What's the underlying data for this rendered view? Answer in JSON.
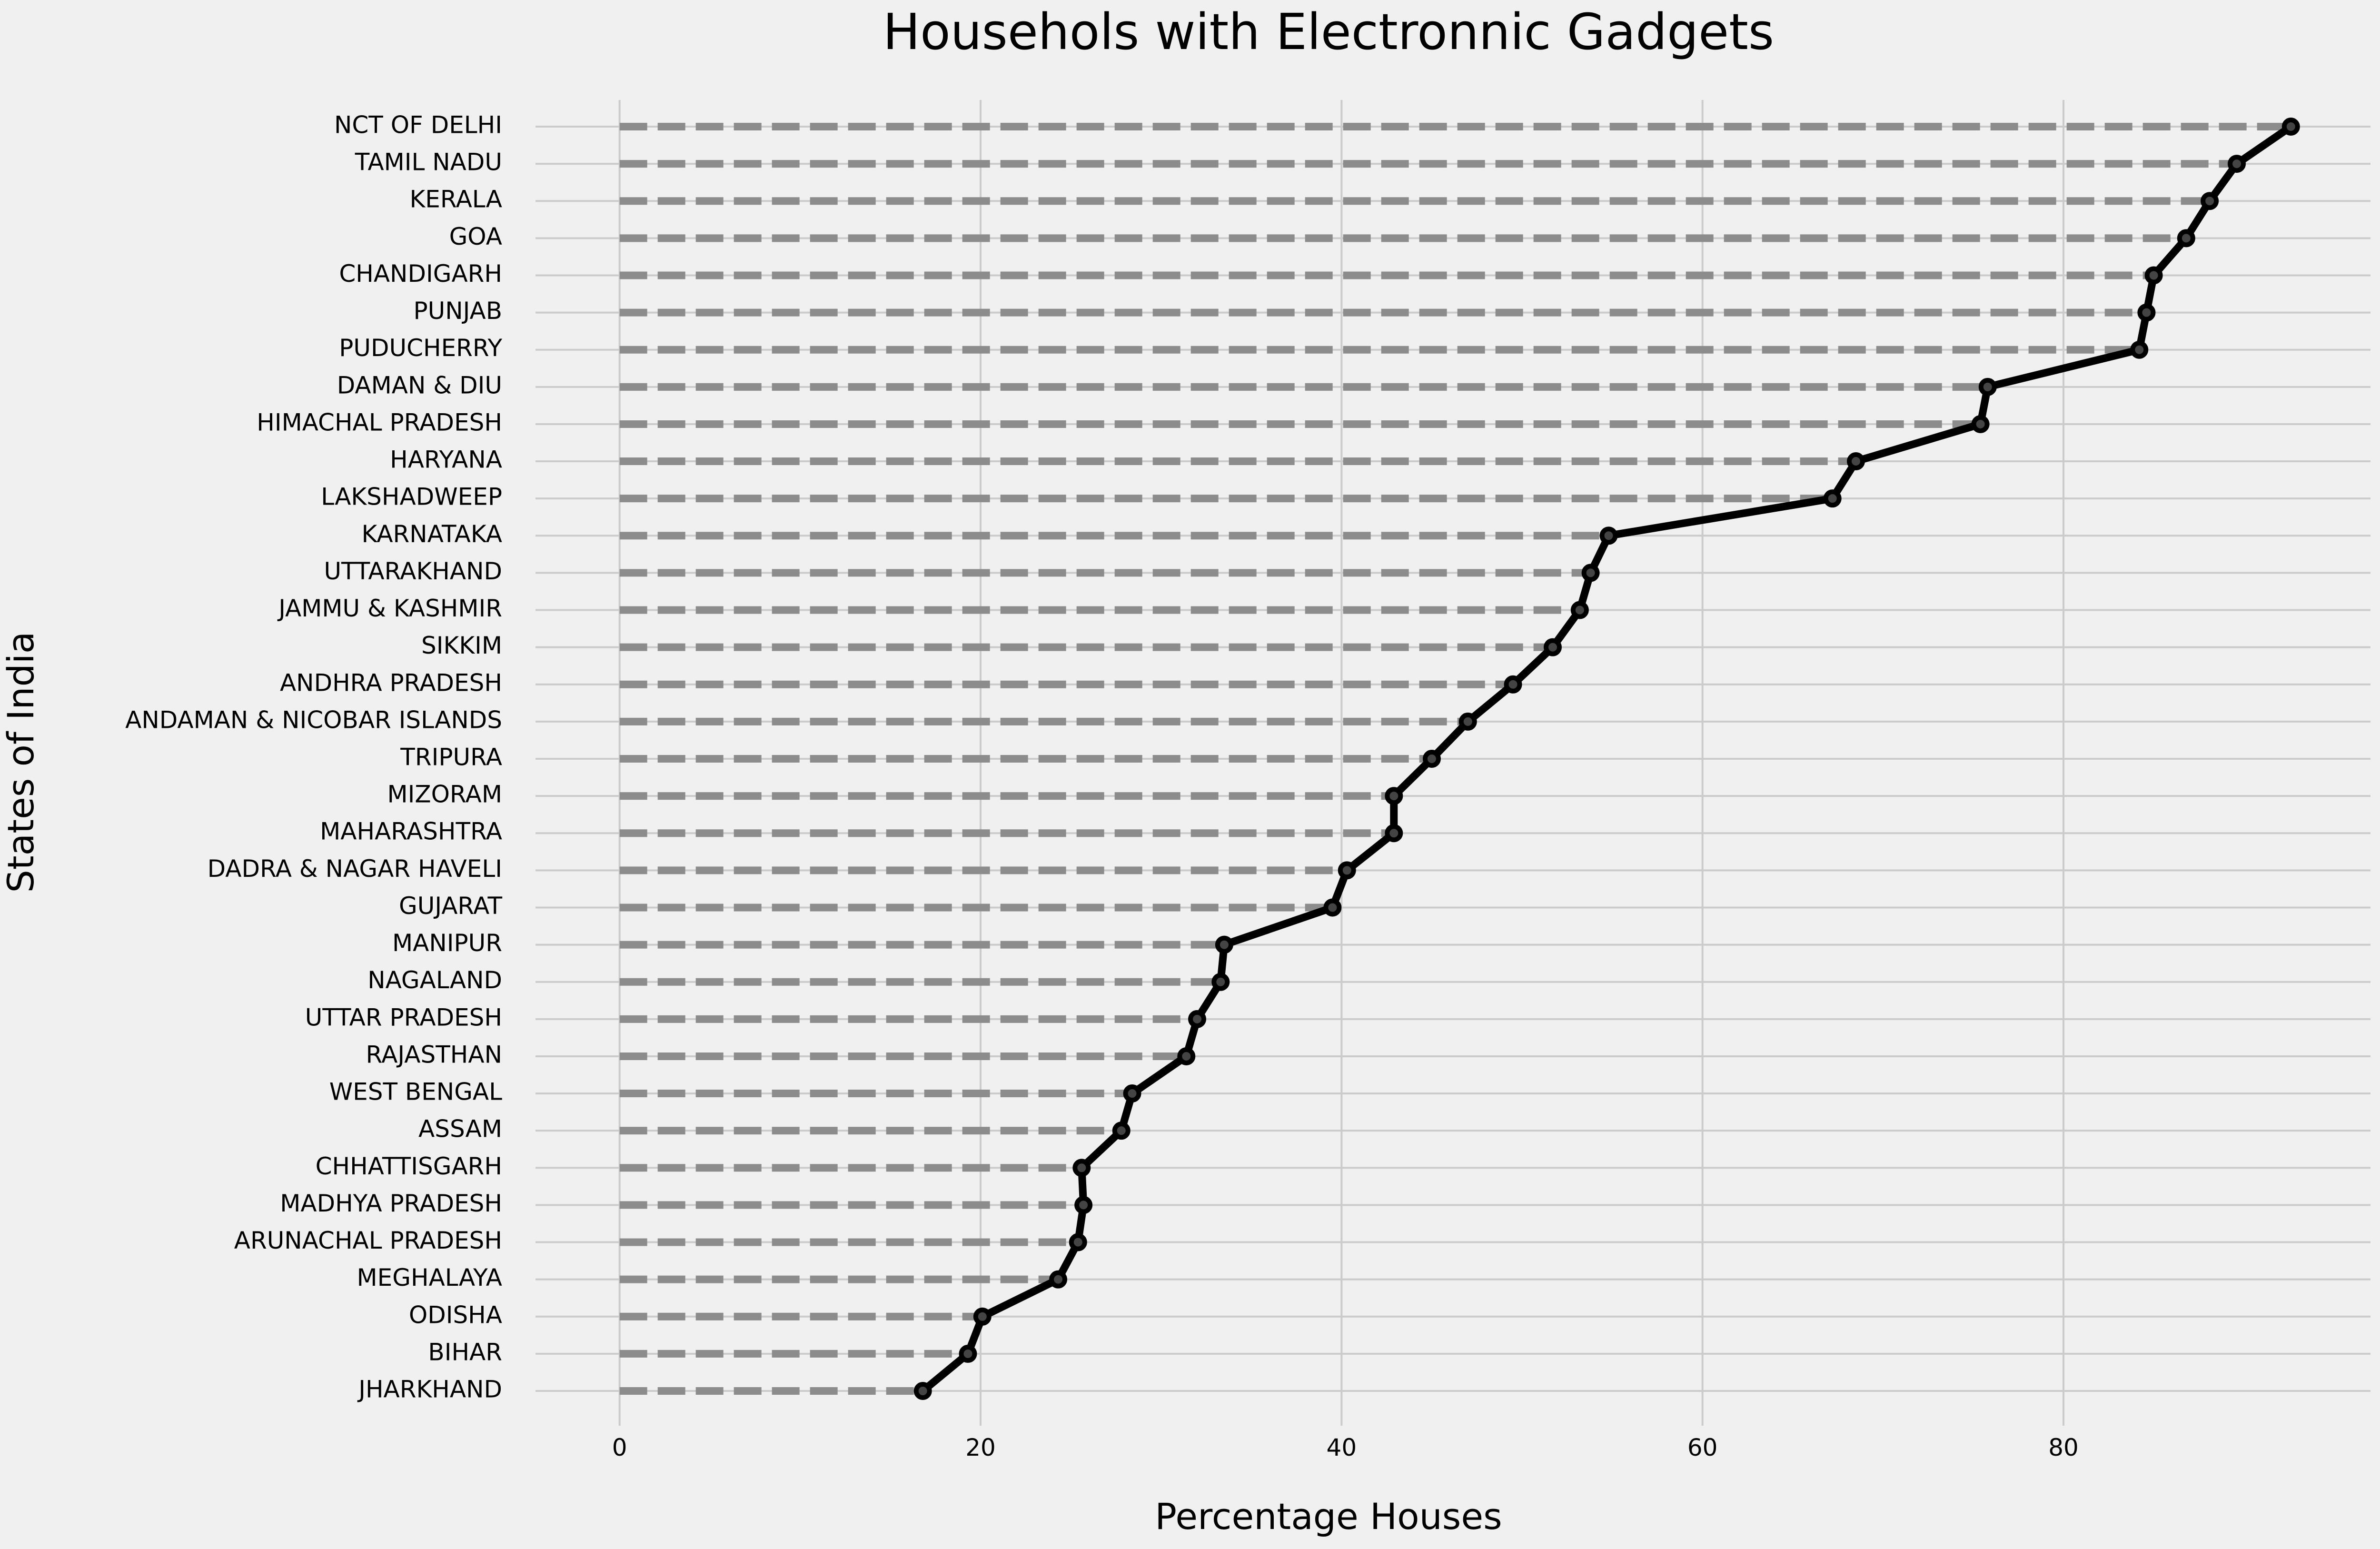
{
  "chart_data": {
    "type": "line",
    "title": "Househols with Electronnic Gadgets",
    "xlabel": "Percentage Houses",
    "ylabel": "States of India",
    "xlim": [
      -4.66,
      97.01
    ],
    "xticks": [
      0,
      20,
      40,
      60,
      80
    ],
    "grid": true,
    "legend": "none",
    "colors": {
      "background": "#f0f0f0",
      "grid": "#cbcbcb",
      "line": "#000000",
      "stem": "#8c8c8c"
    },
    "categories": [
      "NCT OF DELHI",
      "TAMIL NADU",
      "KERALA",
      "GOA",
      "CHANDIGARH",
      "PUNJAB",
      "PUDUCHERRY",
      "DAMAN & DIU",
      "HIMACHAL PRADESH",
      "HARYANA",
      "LAKSHADWEEP",
      "KARNATAKA",
      "UTTARAKHAND",
      "JAMMU & KASHMIR",
      "SIKKIM",
      "ANDHRA PRADESH",
      "ANDAMAN & NICOBAR ISLANDS",
      "TRIPURA",
      "MIZORAM",
      "MAHARASHTRA",
      "DADRA & NAGAR HAVELI",
      "GUJARAT",
      "MANIPUR",
      "NAGALAND",
      "UTTAR PRADESH",
      "RAJASTHAN",
      "WEST BENGAL",
      "ASSAM",
      "CHHATTISGARH",
      "MADHYA PRADESH",
      "ARUNACHAL PRADESH",
      "MEGHALAYA",
      "ODISHA",
      "BIHAR",
      "JHARKHAND"
    ],
    "values": [
      92.6,
      89.6,
      88.1,
      86.8,
      85.0,
      84.6,
      84.2,
      75.8,
      75.4,
      68.5,
      67.2,
      54.8,
      53.8,
      53.2,
      51.7,
      49.5,
      47.0,
      45.0,
      42.9,
      42.9,
      40.3,
      39.5,
      33.5,
      33.3,
      32.0,
      31.4,
      28.4,
      27.8,
      25.6,
      25.7,
      25.4,
      24.3,
      20.1,
      19.3,
      16.8
    ]
  }
}
